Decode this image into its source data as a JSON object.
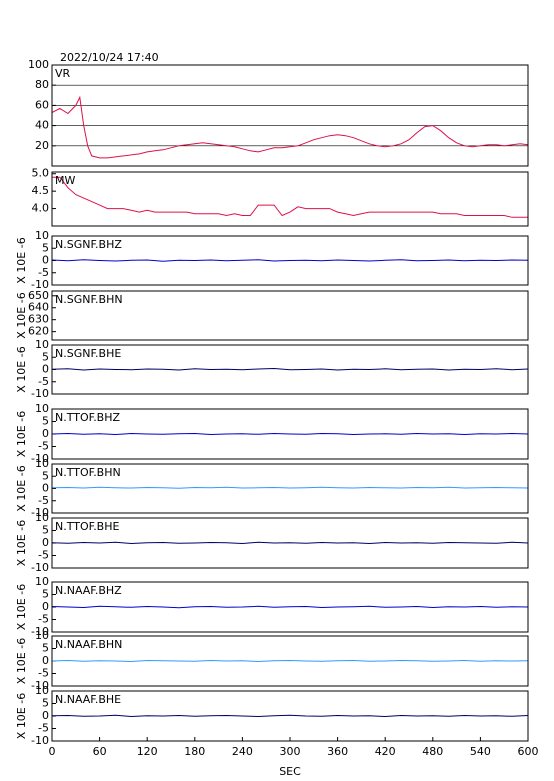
{
  "chart_data": [
    {
      "type": "line",
      "title": "2022/10/24 17:40",
      "label": "VR",
      "xlim": [
        0,
        600
      ],
      "ylim": [
        0,
        100
      ],
      "yticks": [
        20,
        40,
        60,
        80,
        100
      ],
      "grid": true,
      "x": [
        0,
        10,
        20,
        30,
        35,
        40,
        45,
        50,
        60,
        70,
        80,
        90,
        100,
        110,
        120,
        130,
        140,
        150,
        160,
        170,
        180,
        190,
        200,
        210,
        220,
        230,
        240,
        250,
        260,
        270,
        280,
        290,
        300,
        310,
        320,
        330,
        340,
        350,
        360,
        370,
        380,
        390,
        400,
        410,
        420,
        430,
        440,
        450,
        460,
        470,
        480,
        490,
        500,
        510,
        520,
        530,
        540,
        550,
        560,
        570,
        580,
        590,
        600
      ],
      "series": [
        {
          "color": "#e0104a",
          "values": [
            53,
            57,
            52,
            60,
            68,
            40,
            20,
            10,
            8,
            8,
            9,
            10,
            11,
            12,
            14,
            15,
            16,
            18,
            20,
            21,
            22,
            23,
            22,
            21,
            20,
            19,
            17,
            15,
            14,
            16,
            18,
            18,
            19,
            20,
            23,
            26,
            28,
            30,
            31,
            30,
            28,
            25,
            22,
            20,
            19,
            20,
            22,
            26,
            33,
            39,
            40,
            35,
            28,
            23,
            20,
            19,
            20,
            21,
            21,
            20,
            21,
            22,
            21
          ]
        }
      ]
    },
    {
      "type": "line",
      "label": "MW",
      "xlim": [
        0,
        600
      ],
      "ylim": [
        3.5,
        5.05
      ],
      "yticks": [
        {
          "value": 4,
          "label": "4.0"
        },
        4.5,
        {
          "value": 5,
          "label": "5.0"
        }
      ],
      "x": [
        0,
        10,
        20,
        30,
        40,
        50,
        60,
        70,
        80,
        90,
        100,
        110,
        120,
        130,
        140,
        150,
        160,
        170,
        180,
        190,
        200,
        210,
        220,
        230,
        240,
        250,
        260,
        270,
        280,
        290,
        300,
        310,
        320,
        330,
        340,
        350,
        360,
        370,
        380,
        390,
        400,
        410,
        420,
        430,
        440,
        450,
        460,
        470,
        480,
        490,
        500,
        510,
        520,
        530,
        540,
        550,
        560,
        570,
        580,
        590,
        600
      ],
      "series": [
        {
          "color": "#e0104a",
          "values": [
            4.9,
            4.9,
            4.6,
            4.4,
            4.3,
            4.2,
            4.1,
            4.0,
            4.0,
            4.0,
            3.95,
            3.9,
            3.95,
            3.9,
            3.9,
            3.9,
            3.9,
            3.9,
            3.85,
            3.85,
            3.85,
            3.85,
            3.8,
            3.85,
            3.8,
            3.8,
            4.1,
            4.1,
            4.1,
            3.8,
            3.9,
            4.05,
            4.0,
            4.0,
            4.0,
            4.0,
            3.9,
            3.85,
            3.8,
            3.85,
            3.9,
            3.9,
            3.9,
            3.9,
            3.9,
            3.9,
            3.9,
            3.9,
            3.9,
            3.85,
            3.85,
            3.85,
            3.8,
            3.8,
            3.8,
            3.8,
            3.8,
            3.8,
            3.75,
            3.75,
            3.75
          ]
        }
      ]
    },
    {
      "type": "line",
      "label": "N.SGNF.BHZ",
      "ylabel": "X 10E -6",
      "xlim": [
        0,
        600
      ],
      "ylim": [
        -10,
        10
      ],
      "yticks": [
        -10,
        -5,
        0,
        5,
        10
      ],
      "x": [
        0,
        20,
        40,
        60,
        80,
        100,
        120,
        140,
        160,
        180,
        200,
        220,
        240,
        260,
        280,
        300,
        320,
        340,
        360,
        380,
        400,
        420,
        440,
        460,
        480,
        500,
        520,
        540,
        560,
        580,
        600
      ],
      "series": [
        {
          "color": "#0000cc",
          "values": [
            0.2,
            -0.1,
            0.3,
            0,
            -0.2,
            0.1,
            0.2,
            -0.3,
            0.1,
            0,
            0.2,
            -0.1,
            0.1,
            0.3,
            -0.2,
            0,
            0.1,
            -0.1,
            0.2,
            0,
            -0.2,
            0.1,
            0.3,
            -0.1,
            0,
            0.2,
            -0.1,
            0.1,
            0,
            0.2,
            0.1
          ]
        }
      ]
    },
    {
      "type": "line",
      "label": "N.SGNF.BHN",
      "ylabel": "X 10E -6",
      "xlim": [
        0,
        600
      ],
      "ylim": [
        613,
        654
      ],
      "yticks": [
        620,
        630,
        640,
        650
      ]
    },
    {
      "type": "line",
      "label": "N.SGNF.BHE",
      "ylabel": "X 10E -6",
      "xlim": [
        0,
        600
      ],
      "ylim": [
        -10,
        10
      ],
      "yticks": [
        -10,
        -5,
        0,
        5,
        10
      ],
      "x": [
        0,
        20,
        40,
        60,
        80,
        100,
        120,
        140,
        160,
        180,
        200,
        220,
        240,
        260,
        280,
        300,
        320,
        340,
        360,
        380,
        400,
        420,
        440,
        460,
        480,
        500,
        520,
        540,
        560,
        580,
        600
      ],
      "series": [
        {
          "color": "#000066",
          "values": [
            0.1,
            0.3,
            -0.2,
            0.2,
            0,
            -0.1,
            0.2,
            0.1,
            -0.2,
            0.3,
            0,
            0.1,
            -0.1,
            0.2,
            0.4,
            -0.1,
            0,
            0.2,
            -0.2,
            0.1,
            0,
            0.3,
            -0.1,
            0.1,
            0.2,
            -0.2,
            0.1,
            0,
            0.3,
            -0.1,
            0.2
          ]
        }
      ]
    },
    {
      "type": "line",
      "label": "N.TTOF.BHZ",
      "ylabel": "X 10E -6",
      "xlim": [
        0,
        600
      ],
      "ylim": [
        -10,
        10
      ],
      "yticks": [
        -10,
        -5,
        0,
        5,
        10
      ],
      "x": [
        0,
        20,
        40,
        60,
        80,
        100,
        120,
        140,
        160,
        180,
        200,
        220,
        240,
        260,
        280,
        300,
        320,
        340,
        360,
        380,
        400,
        420,
        440,
        460,
        480,
        500,
        520,
        540,
        560,
        580,
        600
      ],
      "series": [
        {
          "color": "#0000cc",
          "values": [
            0,
            0.2,
            -0.1,
            0.1,
            -0.2,
            0.2,
            0,
            -0.1,
            0.1,
            0.2,
            -0.2,
            0,
            0.1,
            -0.1,
            0.2,
            0,
            -0.1,
            0.2,
            0.1,
            -0.2,
            0,
            0.1,
            -0.1,
            0.2,
            0,
            0.1,
            -0.2,
            0.1,
            0,
            0.2,
            0
          ]
        }
      ]
    },
    {
      "type": "line",
      "label": "N.TTOF.BHN",
      "ylabel": "X 10E -6",
      "xlim": [
        0,
        600
      ],
      "ylim": [
        -10,
        10
      ],
      "yticks": [
        -10,
        -5,
        0,
        5,
        10
      ],
      "x": [
        0,
        20,
        40,
        60,
        80,
        100,
        120,
        140,
        160,
        180,
        200,
        220,
        240,
        260,
        280,
        300,
        320,
        340,
        360,
        380,
        400,
        420,
        440,
        460,
        480,
        500,
        520,
        540,
        560,
        580,
        600
      ],
      "series": [
        {
          "color": "#3399ff",
          "values": [
            0.3,
            0.4,
            0.2,
            0.5,
            0.3,
            0.2,
            0.4,
            0.3,
            0.1,
            0.4,
            0.3,
            0.5,
            0.2,
            0.3,
            0.4,
            0.2,
            0.3,
            0.5,
            0.3,
            0.2,
            0.4,
            0.3,
            0.2,
            0.4,
            0.3,
            0.5,
            0.2,
            0.3,
            0.4,
            0.3,
            0.2
          ]
        }
      ]
    },
    {
      "type": "line",
      "label": "N.TTOF.BHE",
      "ylabel": "X 10E -6",
      "xlim": [
        0,
        600
      ],
      "ylim": [
        -10,
        10
      ],
      "yticks": [
        -10,
        -5,
        0,
        5,
        10
      ],
      "x": [
        0,
        20,
        40,
        60,
        80,
        100,
        120,
        140,
        160,
        180,
        200,
        220,
        240,
        260,
        280,
        300,
        320,
        340,
        360,
        380,
        400,
        420,
        440,
        460,
        480,
        500,
        520,
        540,
        560,
        580,
        600
      ],
      "series": [
        {
          "color": "#000066",
          "values": [
            0.1,
            -0.1,
            0.2,
            0,
            0.3,
            -0.2,
            0.1,
            0.2,
            -0.1,
            0,
            0.2,
            0.1,
            -0.2,
            0.3,
            0,
            0.1,
            -0.1,
            0.2,
            0,
            0.1,
            -0.2,
            0.2,
            0,
            0.1,
            -0.1,
            0.2,
            0.1,
            0,
            -0.1,
            0.3,
            0
          ]
        }
      ]
    },
    {
      "type": "line",
      "label": "N.NAAF.BHZ",
      "ylabel": "X 10E -6",
      "xlim": [
        0,
        600
      ],
      "ylim": [
        -10,
        10
      ],
      "yticks": [
        -10,
        -5,
        0,
        5,
        10
      ],
      "x": [
        0,
        20,
        40,
        60,
        80,
        100,
        120,
        140,
        160,
        180,
        200,
        220,
        240,
        260,
        280,
        300,
        320,
        340,
        360,
        380,
        400,
        420,
        440,
        460,
        480,
        500,
        520,
        540,
        560,
        580,
        600
      ],
      "series": [
        {
          "color": "#0000cc",
          "values": [
            0.2,
            0,
            -0.2,
            0.3,
            0.1,
            -0.1,
            0.2,
            0,
            -0.3,
            0.1,
            0.2,
            -0.1,
            0,
            0.3,
            -0.1,
            0.1,
            0.2,
            -0.2,
            0,
            0.1,
            0.3,
            -0.1,
            0,
            0.2,
            -0.2,
            0.1,
            0,
            0.2,
            -0.1,
            0.1,
            0
          ]
        }
      ]
    },
    {
      "type": "line",
      "label": "N.NAAF.BHN",
      "ylabel": "X 10E -6",
      "xlim": [
        0,
        600
      ],
      "ylim": [
        -10,
        10
      ],
      "yticks": [
        -10,
        -5,
        0,
        5,
        10
      ],
      "x": [
        0,
        20,
        40,
        60,
        80,
        100,
        120,
        140,
        160,
        180,
        200,
        220,
        240,
        260,
        280,
        300,
        320,
        340,
        360,
        380,
        400,
        420,
        440,
        460,
        480,
        500,
        520,
        540,
        560,
        580,
        600
      ],
      "series": [
        {
          "color": "#3399ff",
          "values": [
            0,
            0.2,
            -0.1,
            0.1,
            0,
            -0.2,
            0.2,
            0.1,
            0,
            -0.1,
            0.2,
            0,
            0.1,
            -0.2,
            0.1,
            0.2,
            0,
            -0.1,
            0.1,
            0.2,
            -0.1,
            0,
            0.2,
            0.1,
            -0.1,
            0,
            0.2,
            -0.1,
            0.1,
            0,
            0.1
          ]
        }
      ]
    },
    {
      "type": "line",
      "label": "N.NAAF.BHE",
      "ylabel": "X 10E -6",
      "xlim": [
        0,
        600
      ],
      "ylim": [
        -10,
        10
      ],
      "yticks": [
        -10,
        -5,
        0,
        5,
        10
      ],
      "xlabel": "SEC",
      "xticks": [
        0,
        60,
        120,
        180,
        240,
        300,
        360,
        420,
        480,
        540,
        600
      ],
      "x": [
        0,
        20,
        40,
        60,
        80,
        100,
        120,
        140,
        160,
        180,
        200,
        220,
        240,
        260,
        280,
        300,
        320,
        340,
        360,
        380,
        400,
        420,
        440,
        460,
        480,
        500,
        520,
        540,
        560,
        580,
        600
      ],
      "series": [
        {
          "color": "#000066",
          "values": [
            0.1,
            0.2,
            -0.1,
            0,
            0.3,
            -0.2,
            0.1,
            0,
            0.2,
            -0.1,
            0.1,
            0.2,
            0,
            -0.2,
            0.1,
            0.3,
            0,
            -0.1,
            0.2,
            0,
            0.1,
            -0.2,
            0.2,
            0,
            0.1,
            -0.1,
            0.2,
            0,
            0.1,
            -0.1,
            0.2
          ]
        }
      ]
    }
  ]
}
